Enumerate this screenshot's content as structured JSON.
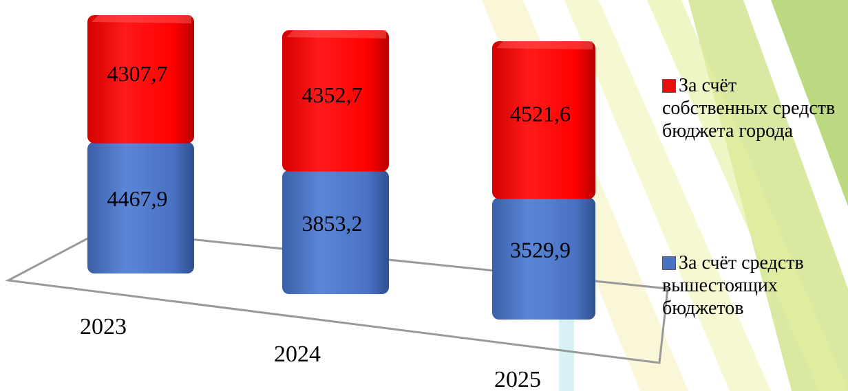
{
  "chart_data": {
    "type": "bar3d-stacked",
    "categories": [
      "2023",
      "2024",
      "2025"
    ],
    "series": [
      {
        "name": "За счёт средств вышестоящих бюджетов",
        "color": "#4a72c4",
        "values": [
          4467.9,
          3853.2,
          3529.9
        ],
        "value_labels": [
          "4467,9",
          "3853,2",
          "3529,9"
        ]
      },
      {
        "name": "За счёт собственных средств бюджета города",
        "color": "#e8100f",
        "values": [
          4307.7,
          4352.7,
          4521.6
        ],
        "value_labels": [
          "4307,7",
          "4352,7",
          "4521,6"
        ]
      }
    ]
  }
}
